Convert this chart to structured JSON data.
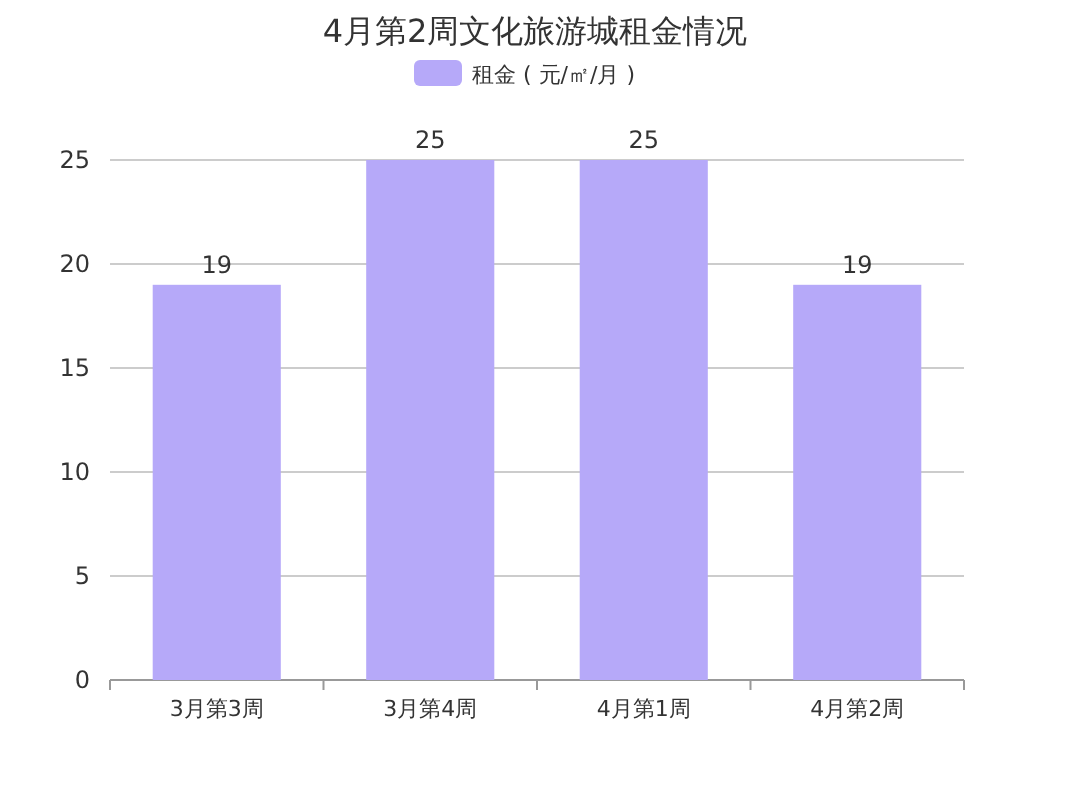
{
  "chart_data": {
    "type": "bar",
    "title": "4月第2周文化旅游城租金情况",
    "categories": [
      "3月第3周",
      "3月第4周",
      "4月第1周",
      "4月第2周"
    ],
    "series": [
      {
        "name": "租金 ( 元/㎡/月 )",
        "color": "#b6a9f9",
        "values": [
          19,
          25,
          25,
          19
        ]
      }
    ],
    "ylim": [
      0,
      25
    ],
    "yticks": [
      0,
      5,
      10,
      15,
      20,
      25
    ],
    "grid": "y",
    "legend": "top",
    "data_labels": true
  }
}
